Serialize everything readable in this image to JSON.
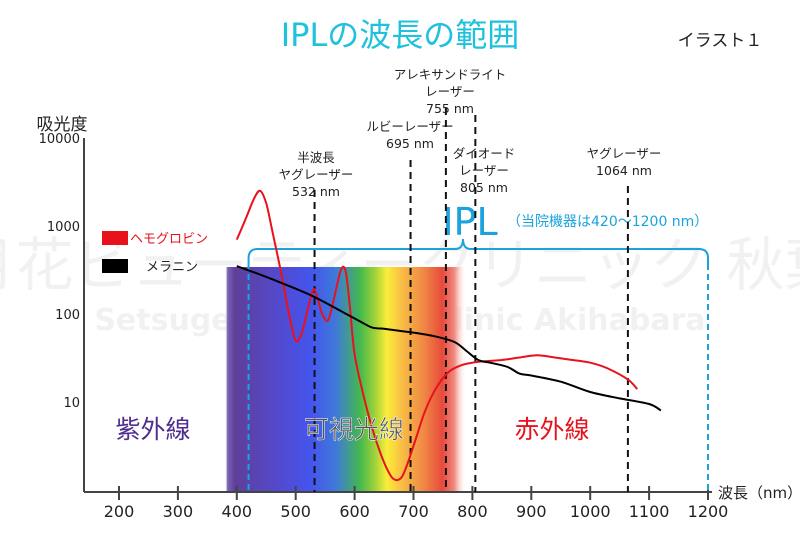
{
  "header": {
    "title": "IPLの波長の範囲",
    "figure_label": "イラスト１"
  },
  "watermark": {
    "line1": "雪月花ビューティークリニック 秋葉原",
    "line2": "Setsugekka Beauty Clinic Akihabara"
  },
  "colors": {
    "title": "#1fc2dc",
    "ipl": "#1aa3dc",
    "hemoglobin": "#e8121d",
    "melanin": "#000000",
    "uv_label": "#4f2d8e",
    "ir_label": "#e8121d",
    "visible_label": "#555555",
    "axis": "#444444",
    "laser_line": "#111111"
  },
  "chart_data": {
    "type": "line",
    "title": "IPLの波長の範囲",
    "xlabel": "波長（nm）",
    "ylabel": "吸光度",
    "xlim": [
      150,
      1230
    ],
    "ylim": [
      1,
      10000
    ],
    "yscale": "log",
    "xticks": [
      200,
      300,
      400,
      500,
      600,
      700,
      800,
      900,
      1000,
      1100,
      1200
    ],
    "xtick_labels": [
      "200",
      "300",
      "400",
      "500",
      "600",
      "700",
      "800",
      "900",
      "1000",
      "1100",
      "1200"
    ],
    "yticks": [
      10,
      100,
      1000,
      10000
    ],
    "ytick_labels": [
      "10",
      "100",
      "1000",
      "10000"
    ],
    "grid": false,
    "legend": {
      "placement": "left",
      "entries": [
        {
          "name": "ヘモグロビン",
          "color": "#e8121d"
        },
        {
          "name": "メラニン",
          "color": "#000000"
        }
      ]
    },
    "series": [
      {
        "name": "ヘモグロビン",
        "color": "#e8121d",
        "x": [
          400,
          415,
          430,
          440,
          450,
          460,
          475,
          490,
          500,
          510,
          520,
          530,
          537,
          545,
          555,
          565,
          577,
          585,
          592,
          600,
          615,
          630,
          645,
          660,
          670,
          680,
          690,
          705,
          720,
          740,
          760,
          780,
          800,
          820,
          850,
          880,
          910,
          940,
          970,
          1000,
          1030,
          1064,
          1080
        ],
        "y": [
          700,
          1200,
          2100,
          2500,
          1800,
          900,
          300,
          90,
          50,
          60,
          110,
          190,
          150,
          100,
          85,
          150,
          320,
          300,
          120,
          35,
          12,
          5,
          2.5,
          1.5,
          1.3,
          1.4,
          2,
          4,
          8,
          15,
          22,
          26,
          28,
          29,
          30,
          32,
          34,
          32,
          30,
          28,
          24,
          18,
          14
        ]
      },
      {
        "name": "メラニン",
        "color": "#000000",
        "x": [
          400,
          440,
          480,
          520,
          550,
          580,
          610,
          630,
          650,
          680,
          710,
          740,
          770,
          790,
          810,
          830,
          860,
          880,
          900,
          950,
          1000,
          1050,
          1100,
          1120
        ],
        "y": [
          350,
          280,
          220,
          170,
          135,
          105,
          82,
          70,
          68,
          64,
          60,
          55,
          48,
          38,
          30,
          28,
          25,
          21,
          20,
          17,
          13,
          11,
          9.5,
          8
        ]
      }
    ],
    "lasers": [
      {
        "name_lines": [
          "半波長",
          "ヤグレーザー"
        ],
        "wavelength_label": "532 nm",
        "wavelength": 532
      },
      {
        "name_lines": [
          "ルビーレーザー"
        ],
        "wavelength_label": "695 nm",
        "wavelength": 695
      },
      {
        "name_lines": [
          "アレキサンドライト",
          "レーザー"
        ],
        "wavelength_label": "755 nm",
        "wavelength": 755
      },
      {
        "name_lines": [
          "ダイオード",
          "レーザー"
        ],
        "wavelength_label": "805 nm",
        "wavelength": 805
      },
      {
        "name_lines": [
          "ヤグレーザー"
        ],
        "wavelength_label": "1064 nm",
        "wavelength": 1064
      }
    ],
    "ipl_range": {
      "label": "IPL",
      "note": "（当院機器は420～1200 nm）",
      "start_nm": 420,
      "end_nm": 1200
    },
    "spectrum": {
      "start_nm": 380,
      "end_nm": 790
    },
    "regions": [
      {
        "label": "紫外線",
        "color": "#4f2d8e"
      },
      {
        "label": "可視光線",
        "color": "#555555"
      },
      {
        "label": "赤外線",
        "color": "#e8121d"
      }
    ]
  }
}
